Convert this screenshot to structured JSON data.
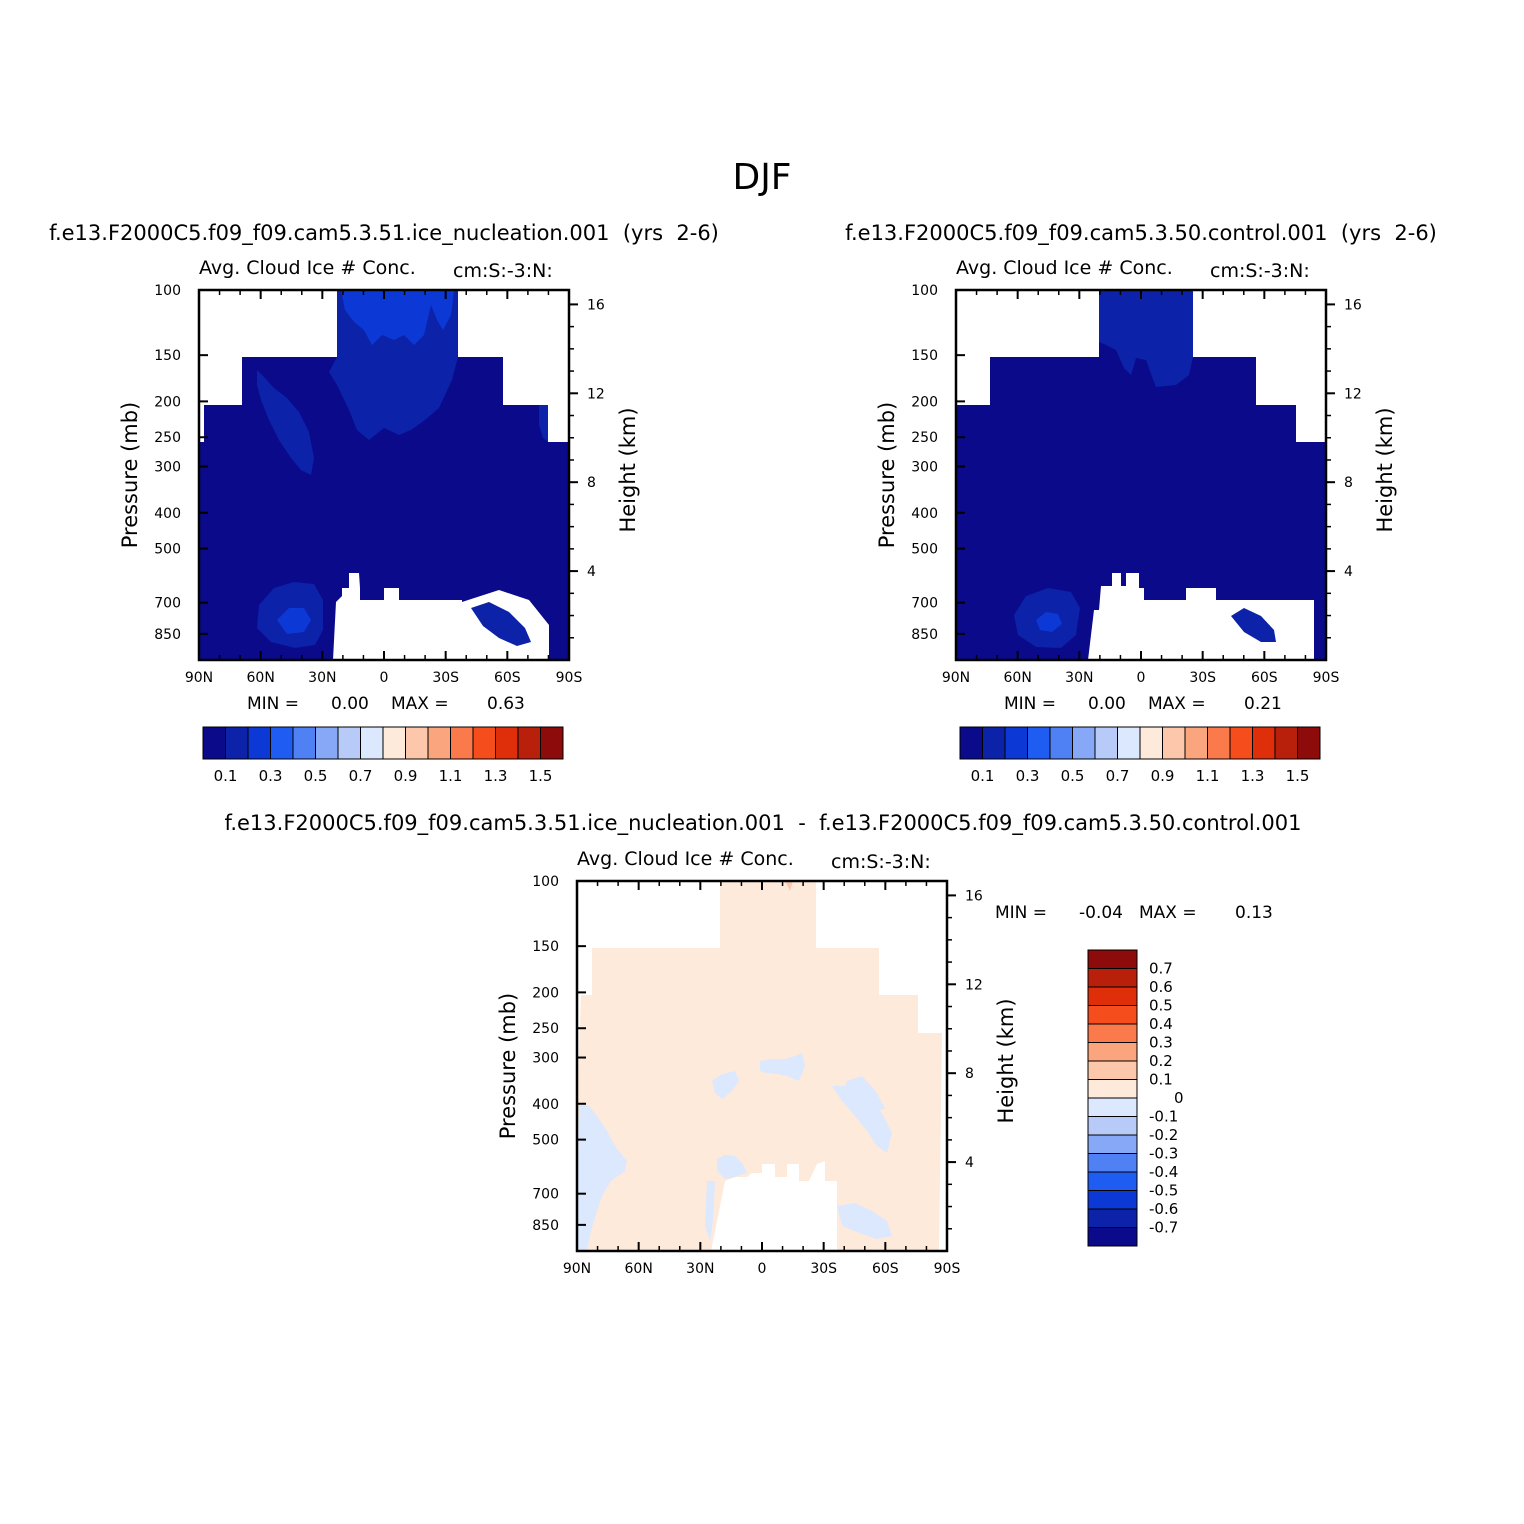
{
  "figure": {
    "season": "DJF",
    "titles": {
      "top_left": "f.e13.F2000C5.f09_f09.cam5.3.51.ice_nucleation.001  (yrs  2-6)",
      "top_right": "f.e13.F2000C5.f09_f09.cam5.3.50.control.001  (yrs  2-6)",
      "bottom": "f.e13.F2000C5.f09_f09.cam5.3.51.ice_nucleation.001  -  f.e13.F2000C5.f09_f09.cam5.3.50.control.001"
    },
    "colors": {
      "abs_scale": [
        "#0a0a8a",
        "#0c22a8",
        "#0c38d6",
        "#1f5cf2",
        "#4f80f4",
        "#86a8f6",
        "#b8cbf8",
        "#dce8fd",
        "#feeadb",
        "#fcc7aa",
        "#fba57e",
        "#fb7a4c",
        "#f64d1c",
        "#de2e0a",
        "#b8200c",
        "#8e0b0b"
      ],
      "diff_scale": [
        "#8e0b0b",
        "#b8200c",
        "#de2e0a",
        "#f64d1c",
        "#fb7a4c",
        "#fba57e",
        "#fcc7aa",
        "#feeadb",
        "#dce8fd",
        "#b8cbf8",
        "#86a8f6",
        "#4f80f4",
        "#1f5cf2",
        "#0c38d6",
        "#0c22a8",
        "#0a0a8a"
      ],
      "fill_deep": "#0a0a8a",
      "fill_mid": "#0c22a8",
      "fill_light": "#0c38d6",
      "diff_pos": "#feeadb",
      "diff_neg": "#dce8fd",
      "diff_spot": "#fcc7aa"
    }
  },
  "chart_data": [
    {
      "type": "heatmap",
      "panel": "ice_nucleation",
      "title": "Avg. Cloud Ice # Conc.",
      "units": "cm:S:-3:N:",
      "ylabel_left": "Pressure (mb)",
      "ylabel_right": "Height (km)",
      "xlabel": "",
      "x_ticks": [
        "90N",
        "60N",
        "30N",
        "0",
        "30S",
        "60S",
        "90S"
      ],
      "x_range": [
        90,
        -90
      ],
      "y_ticks": [
        "100",
        "150",
        "200",
        "250",
        "300",
        "400",
        "500",
        "700",
        "850"
      ],
      "y_range": [
        100,
        1000
      ],
      "height_ticks": [
        "16",
        "12",
        "8",
        "4"
      ],
      "min_label": "MIN =",
      "min_value": "0.00",
      "max_label": "MAX =",
      "max_value": "0.63",
      "colorbar_labels": [
        "0.1",
        "0.3",
        "0.5",
        "0.7",
        "0.9",
        "1.1",
        "1.3",
        "1.5"
      ],
      "levels": [
        0.1,
        0.2,
        0.3,
        0.4,
        0.5,
        0.6,
        0.7,
        0.8,
        0.9,
        1.0,
        1.1,
        1.2,
        1.3,
        1.4,
        1.5
      ]
    },
    {
      "type": "heatmap",
      "panel": "control",
      "title": "Avg. Cloud Ice # Conc.",
      "units": "cm:S:-3:N:",
      "ylabel_left": "Pressure (mb)",
      "ylabel_right": "Height (km)",
      "xlabel": "",
      "x_ticks": [
        "90N",
        "60N",
        "30N",
        "0",
        "30S",
        "60S",
        "90S"
      ],
      "x_range": [
        90,
        -90
      ],
      "y_ticks": [
        "100",
        "150",
        "200",
        "250",
        "300",
        "400",
        "500",
        "700",
        "850"
      ],
      "y_range": [
        100,
        1000
      ],
      "height_ticks": [
        "16",
        "12",
        "8",
        "4"
      ],
      "min_label": "MIN =",
      "min_value": "0.00",
      "max_label": "MAX =",
      "max_value": "0.21",
      "colorbar_labels": [
        "0.1",
        "0.3",
        "0.5",
        "0.7",
        "0.9",
        "1.1",
        "1.3",
        "1.5"
      ],
      "levels": [
        0.1,
        0.2,
        0.3,
        0.4,
        0.5,
        0.6,
        0.7,
        0.8,
        0.9,
        1.0,
        1.1,
        1.2,
        1.3,
        1.4,
        1.5
      ]
    },
    {
      "type": "heatmap",
      "panel": "difference",
      "title": "Avg. Cloud Ice # Conc.",
      "units": "cm:S:-3:N:",
      "ylabel_left": "Pressure (mb)",
      "ylabel_right": "Height (km)",
      "xlabel": "",
      "x_ticks": [
        "90N",
        "60N",
        "30N",
        "0",
        "30S",
        "60S",
        "90S"
      ],
      "x_range": [
        90,
        -90
      ],
      "y_ticks": [
        "100",
        "150",
        "200",
        "250",
        "300",
        "400",
        "500",
        "700",
        "850"
      ],
      "y_range": [
        100,
        1000
      ],
      "height_ticks": [
        "16",
        "12",
        "8",
        "4"
      ],
      "min_label": "MIN =",
      "min_value": "-0.04",
      "max_label": "MAX =",
      "max_value": "0.13",
      "colorbar_labels": [
        "0.7",
        "0.6",
        "0.5",
        "0.4",
        "0.3",
        "0.2",
        "0.1",
        "0",
        "-0.1",
        "-0.2",
        "-0.3",
        "-0.4",
        "-0.5",
        "-0.6",
        "-0.7"
      ],
      "levels": [
        0.7,
        0.6,
        0.5,
        0.4,
        0.3,
        0.2,
        0.1,
        0,
        -0.1,
        -0.2,
        -0.3,
        -0.4,
        -0.5,
        -0.6,
        -0.7
      ]
    }
  ]
}
